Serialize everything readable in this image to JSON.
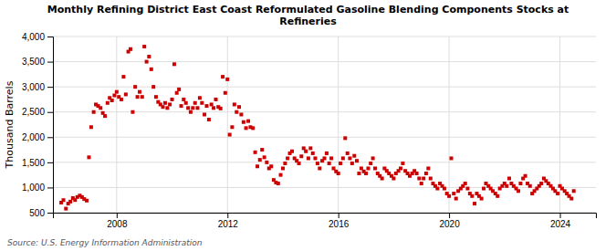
{
  "chart_data": {
    "type": "scatter",
    "title": "Monthly Refining District East Coast Reformulated Gasoline Blending Components Stocks at\nRefineries",
    "ylabel": "Thousand Barrels",
    "source": "Source: U.S. Energy Information Administration",
    "color": "#cc0000",
    "marker": "square",
    "grid": true,
    "xlim": [
      2005.7,
      2025.3
    ],
    "xticks": [
      2008,
      2012,
      2016,
      2020,
      2024
    ],
    "ylim": [
      500,
      4000
    ],
    "yticks": [
      500,
      {
        "value": 1000,
        "label": "1,000"
      },
      {
        "value": 1500,
        "label": "1,500"
      },
      {
        "value": 2000,
        "label": "2,000"
      },
      {
        "value": 2500,
        "label": "2,500"
      },
      {
        "value": 3000,
        "label": "3,000"
      },
      {
        "value": 3500,
        "label": "3,500"
      },
      {
        "value": 4000,
        "label": "4,000"
      }
    ],
    "x": [
      2006.0,
      2006.08,
      2006.17,
      2006.25,
      2006.33,
      2006.42,
      2006.5,
      2006.58,
      2006.67,
      2006.75,
      2006.83,
      2006.92,
      2007.0,
      2007.08,
      2007.17,
      2007.25,
      2007.33,
      2007.42,
      2007.5,
      2007.58,
      2007.67,
      2007.75,
      2007.83,
      2007.92,
      2008.0,
      2008.08,
      2008.17,
      2008.25,
      2008.33,
      2008.42,
      2008.5,
      2008.58,
      2008.67,
      2008.75,
      2008.83,
      2008.92,
      2009.0,
      2009.08,
      2009.17,
      2009.25,
      2009.33,
      2009.42,
      2009.5,
      2009.58,
      2009.67,
      2009.75,
      2009.83,
      2009.92,
      2010.0,
      2010.08,
      2010.17,
      2010.25,
      2010.33,
      2010.42,
      2010.5,
      2010.58,
      2010.67,
      2010.75,
      2010.83,
      2010.92,
      2011.0,
      2011.08,
      2011.17,
      2011.25,
      2011.33,
      2011.42,
      2011.5,
      2011.58,
      2011.67,
      2011.75,
      2011.83,
      2011.92,
      2012.0,
      2012.08,
      2012.17,
      2012.25,
      2012.33,
      2012.42,
      2012.5,
      2012.58,
      2012.67,
      2012.75,
      2012.83,
      2012.92,
      2013.0,
      2013.08,
      2013.17,
      2013.25,
      2013.33,
      2013.42,
      2013.5,
      2013.58,
      2013.67,
      2013.75,
      2013.83,
      2013.92,
      2014.0,
      2014.08,
      2014.17,
      2014.25,
      2014.33,
      2014.42,
      2014.5,
      2014.58,
      2014.67,
      2014.75,
      2014.83,
      2014.92,
      2015.0,
      2015.08,
      2015.17,
      2015.25,
      2015.33,
      2015.42,
      2015.5,
      2015.58,
      2015.67,
      2015.75,
      2015.83,
      2015.92,
      2016.0,
      2016.08,
      2016.17,
      2016.25,
      2016.33,
      2016.42,
      2016.5,
      2016.58,
      2016.67,
      2016.75,
      2016.83,
      2016.92,
      2017.0,
      2017.08,
      2017.17,
      2017.25,
      2017.33,
      2017.42,
      2017.5,
      2017.58,
      2017.67,
      2017.75,
      2017.83,
      2017.92,
      2018.0,
      2018.08,
      2018.17,
      2018.25,
      2018.33,
      2018.42,
      2018.5,
      2018.58,
      2018.67,
      2018.75,
      2018.83,
      2018.92,
      2019.0,
      2019.08,
      2019.17,
      2019.25,
      2019.33,
      2019.42,
      2019.5,
      2019.58,
      2019.67,
      2019.75,
      2019.83,
      2019.92,
      2020.0,
      2020.08,
      2020.17,
      2020.25,
      2020.33,
      2020.42,
      2020.5,
      2020.58,
      2020.67,
      2020.75,
      2020.83,
      2020.92,
      2021.0,
      2021.08,
      2021.17,
      2021.25,
      2021.33,
      2021.42,
      2021.5,
      2021.58,
      2021.67,
      2021.75,
      2021.83,
      2021.92,
      2022.0,
      2022.08,
      2022.17,
      2022.25,
      2022.33,
      2022.42,
      2022.5,
      2022.58,
      2022.67,
      2022.75,
      2022.83,
      2022.92,
      2023.0,
      2023.08,
      2023.17,
      2023.25,
      2023.33,
      2023.42,
      2023.5,
      2023.58,
      2023.67,
      2023.75,
      2023.83,
      2023.92,
      2024.0,
      2024.08,
      2024.17,
      2024.25,
      2024.33,
      2024.42,
      2024.5
    ],
    "values": [
      700,
      750,
      580,
      680,
      720,
      790,
      750,
      810,
      840,
      810,
      770,
      740,
      1600,
      2200,
      2500,
      2650,
      2620,
      2580,
      2480,
      2420,
      2680,
      2780,
      2730,
      2830,
      2900,
      2800,
      2750,
      3200,
      2850,
      3700,
      3750,
      2500,
      3000,
      2800,
      2900,
      2800,
      3800,
      3500,
      3600,
      3350,
      3000,
      2800,
      2700,
      2650,
      2600,
      2680,
      2580,
      2650,
      2750,
      3450,
      2880,
      2950,
      2620,
      2750,
      2680,
      2580,
      2500,
      2580,
      2680,
      2580,
      2780,
      2680,
      2450,
      2620,
      2350,
      2650,
      2580,
      2750,
      2600,
      2570,
      3200,
      2880,
      3150,
      2050,
      2200,
      2650,
      2500,
      2600,
      2450,
      2300,
      2180,
      2320,
      2200,
      2180,
      1700,
      1420,
      1550,
      1750,
      1600,
      1500,
      1380,
      1420,
      1150,
      1100,
      1080,
      1250,
      1380,
      1480,
      1580,
      1680,
      1720,
      1580,
      1530,
      1480,
      1620,
      1780,
      1720,
      1580,
      1780,
      1680,
      1580,
      1480,
      1380,
      1530,
      1580,
      1680,
      1480,
      1580,
      1380,
      1320,
      1280,
      1480,
      1580,
      1980,
      1680,
      1580,
      1480,
      1630,
      1530,
      1280,
      1380,
      1320,
      1280,
      1380,
      1480,
      1580,
      1380,
      1280,
      1230,
      1180,
      1380,
      1330,
      1280,
      1230,
      1180,
      1280,
      1330,
      1380,
      1480,
      1330,
      1280,
      1230,
      1280,
      1330,
      1280,
      1180,
      1080,
      1180,
      1280,
      1380,
      1180,
      1080,
      1030,
      980,
      1080,
      1030,
      980,
      880,
      830,
      1580,
      880,
      780,
      930,
      980,
      1030,
      1080,
      980,
      880,
      830,
      680,
      880,
      830,
      780,
      980,
      1080,
      1030,
      980,
      930,
      880,
      830,
      980,
      1030,
      1080,
      1030,
      1180,
      1080,
      1030,
      980,
      930,
      1080,
      1180,
      1230,
      1080,
      1030,
      880,
      930,
      980,
      1030,
      1080,
      1180,
      1130,
      1080,
      1030,
      980,
      930,
      880,
      1030,
      980,
      930,
      880,
      830,
      780,
      930
    ]
  }
}
